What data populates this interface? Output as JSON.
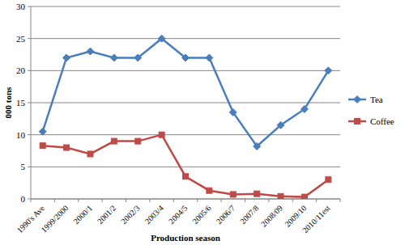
{
  "chart_data": {
    "type": "line",
    "x_label": "Production season",
    "y_label": "000 tons",
    "categories": [
      "1990's Ave",
      "1999/2000",
      "2000/1",
      "2001/2",
      "2002/3",
      "2003/4",
      "2004/5",
      "2005/6",
      "2006/7",
      "2007/8",
      "2008/09",
      "2009/10",
      "2010/11est"
    ],
    "series": [
      {
        "name": "Tea",
        "color": "#4a7ebb",
        "marker": "diamond",
        "values": [
          10.5,
          22,
          23,
          22,
          22,
          25,
          22,
          22,
          13.5,
          8.2,
          11.5,
          14,
          20
        ]
      },
      {
        "name": "Coffee",
        "color": "#be4b48",
        "marker": "square",
        "values": [
          8.3,
          8,
          7,
          9,
          9,
          10,
          3.5,
          1.3,
          0.7,
          0.8,
          0.4,
          0.3,
          3
        ]
      }
    ],
    "ylim": [
      0,
      30
    ],
    "yticks": [
      0,
      5,
      10,
      15,
      20,
      25,
      30
    ],
    "grid": true,
    "legend": "right"
  }
}
